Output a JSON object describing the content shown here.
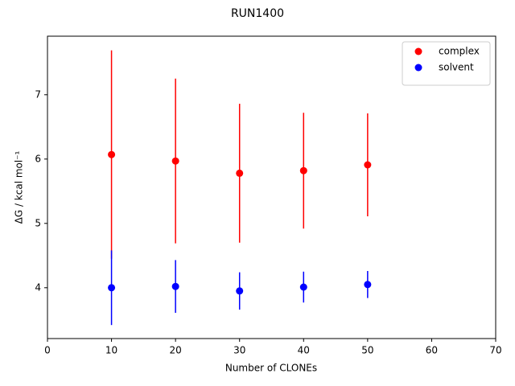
{
  "chart_data": {
    "type": "scatter",
    "title": "RUN1400",
    "xlabel": "Number of CLONEs",
    "ylabel": "ΔG / kcal mol⁻¹",
    "xlim": [
      0,
      70
    ],
    "xticks": [
      0,
      10,
      20,
      30,
      40,
      50,
      60,
      70
    ],
    "ylim": [
      3.21,
      7.91
    ],
    "yticks": [
      4,
      5,
      6,
      7
    ],
    "legend": "upper right",
    "series": [
      {
        "name": "complex",
        "color": "#ff0000",
        "x": [
          10,
          20,
          30,
          40,
          50
        ],
        "values": [
          6.07,
          5.97,
          5.78,
          5.82,
          5.91
        ],
        "errors": [
          1.62,
          1.28,
          1.08,
          0.9,
          0.8
        ]
      },
      {
        "name": "solvent",
        "color": "#0000ff",
        "x": [
          10,
          20,
          30,
          40,
          50
        ],
        "values": [
          4.0,
          4.02,
          3.95,
          4.01,
          4.05
        ],
        "errors": [
          0.58,
          0.41,
          0.29,
          0.24,
          0.21
        ]
      }
    ]
  }
}
